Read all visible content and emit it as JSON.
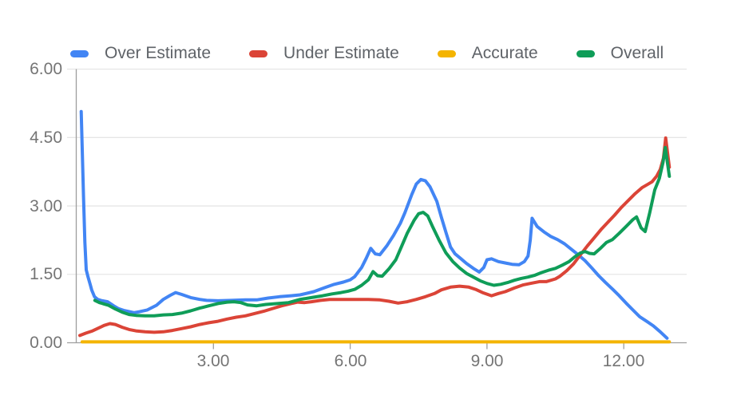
{
  "colors": {
    "background": "#ffffff",
    "grid": "#e6e6e6",
    "axis": "#9e9e9e",
    "tick_label": "#757575",
    "legend_label": "#5f6368"
  },
  "chart_data": {
    "type": "line",
    "title": "",
    "xlabel": "",
    "ylabel": "",
    "grid": true,
    "legend_position": "top",
    "x_range": [
      0,
      13.4
    ],
    "y_range": [
      0,
      6
    ],
    "x_ticks": [
      {
        "value": 3,
        "label": "3.00"
      },
      {
        "value": 6,
        "label": "6.00"
      },
      {
        "value": 9,
        "label": "9.00"
      },
      {
        "value": 12,
        "label": "12.00"
      }
    ],
    "y_ticks": [
      {
        "value": 6,
        "label": "6.00"
      },
      {
        "value": 4.5,
        "label": "4.50"
      },
      {
        "value": 3,
        "label": "3.00"
      },
      {
        "value": 1.5,
        "label": "1.50"
      },
      {
        "value": 0,
        "label": "0.00"
      }
    ],
    "series": [
      {
        "name": "Over Estimate",
        "color": "#4285F4",
        "points": [
          [
            0.1,
            5.07
          ],
          [
            0.12,
            4.3
          ],
          [
            0.15,
            3.2
          ],
          [
            0.18,
            2.2
          ],
          [
            0.21,
            1.6
          ],
          [
            0.25,
            1.44
          ],
          [
            0.3,
            1.27
          ],
          [
            0.33,
            1.16
          ],
          [
            0.39,
            1.01
          ],
          [
            0.46,
            0.95
          ],
          [
            0.56,
            0.92
          ],
          [
            0.68,
            0.9
          ],
          [
            0.81,
            0.81
          ],
          [
            0.91,
            0.75
          ],
          [
            1.03,
            0.71
          ],
          [
            1.16,
            0.68
          ],
          [
            1.26,
            0.66
          ],
          [
            1.38,
            0.68
          ],
          [
            1.55,
            0.72
          ],
          [
            1.75,
            0.82
          ],
          [
            1.9,
            0.95
          ],
          [
            2.05,
            1.04
          ],
          [
            2.17,
            1.1
          ],
          [
            2.3,
            1.06
          ],
          [
            2.5,
            0.99
          ],
          [
            2.7,
            0.95
          ],
          [
            2.85,
            0.93
          ],
          [
            3.1,
            0.92
          ],
          [
            3.4,
            0.93
          ],
          [
            3.7,
            0.94
          ],
          [
            3.95,
            0.94
          ],
          [
            4.2,
            0.98
          ],
          [
            4.45,
            1.01
          ],
          [
            4.7,
            1.03
          ],
          [
            4.9,
            1.05
          ],
          [
            5.2,
            1.12
          ],
          [
            5.45,
            1.21
          ],
          [
            5.65,
            1.28
          ],
          [
            5.85,
            1.33
          ],
          [
            6.0,
            1.38
          ],
          [
            6.1,
            1.45
          ],
          [
            6.25,
            1.65
          ],
          [
            6.35,
            1.85
          ],
          [
            6.45,
            2.07
          ],
          [
            6.55,
            1.95
          ],
          [
            6.65,
            1.93
          ],
          [
            6.8,
            2.12
          ],
          [
            6.95,
            2.35
          ],
          [
            7.1,
            2.62
          ],
          [
            7.2,
            2.85
          ],
          [
            7.35,
            3.25
          ],
          [
            7.45,
            3.48
          ],
          [
            7.55,
            3.58
          ],
          [
            7.65,
            3.55
          ],
          [
            7.75,
            3.42
          ],
          [
            7.9,
            3.1
          ],
          [
            8.0,
            2.75
          ],
          [
            8.1,
            2.42
          ],
          [
            8.2,
            2.1
          ],
          [
            8.3,
            1.95
          ],
          [
            8.42,
            1.85
          ],
          [
            8.55,
            1.74
          ],
          [
            8.7,
            1.63
          ],
          [
            8.83,
            1.55
          ],
          [
            8.93,
            1.65
          ],
          [
            9.0,
            1.82
          ],
          [
            9.1,
            1.84
          ],
          [
            9.25,
            1.78
          ],
          [
            9.4,
            1.75
          ],
          [
            9.55,
            1.72
          ],
          [
            9.7,
            1.71
          ],
          [
            9.82,
            1.78
          ],
          [
            9.9,
            1.9
          ],
          [
            9.95,
            2.25
          ],
          [
            9.99,
            2.73
          ],
          [
            10.1,
            2.55
          ],
          [
            10.25,
            2.43
          ],
          [
            10.4,
            2.33
          ],
          [
            10.55,
            2.26
          ],
          [
            10.7,
            2.17
          ],
          [
            10.85,
            2.05
          ],
          [
            11.0,
            1.93
          ],
          [
            11.15,
            1.8
          ],
          [
            11.3,
            1.64
          ],
          [
            11.45,
            1.47
          ],
          [
            11.6,
            1.32
          ],
          [
            11.75,
            1.18
          ],
          [
            11.9,
            1.03
          ],
          [
            12.05,
            0.87
          ],
          [
            12.2,
            0.72
          ],
          [
            12.35,
            0.57
          ],
          [
            12.5,
            0.47
          ],
          [
            12.65,
            0.37
          ],
          [
            12.8,
            0.24
          ],
          [
            12.95,
            0.1
          ]
        ]
      },
      {
        "name": "Under Estimate",
        "color": "#DB4437",
        "points": [
          [
            0.07,
            0.16
          ],
          [
            0.2,
            0.21
          ],
          [
            0.35,
            0.26
          ],
          [
            0.5,
            0.33
          ],
          [
            0.6,
            0.38
          ],
          [
            0.73,
            0.42
          ],
          [
            0.85,
            0.4
          ],
          [
            1.0,
            0.34
          ],
          [
            1.15,
            0.29
          ],
          [
            1.3,
            0.26
          ],
          [
            1.5,
            0.24
          ],
          [
            1.7,
            0.23
          ],
          [
            1.9,
            0.24
          ],
          [
            2.1,
            0.27
          ],
          [
            2.3,
            0.31
          ],
          [
            2.5,
            0.35
          ],
          [
            2.7,
            0.4
          ],
          [
            2.9,
            0.44
          ],
          [
            3.1,
            0.47
          ],
          [
            3.3,
            0.52
          ],
          [
            3.5,
            0.56
          ],
          [
            3.7,
            0.59
          ],
          [
            3.9,
            0.64
          ],
          [
            4.1,
            0.69
          ],
          [
            4.3,
            0.75
          ],
          [
            4.5,
            0.81
          ],
          [
            4.7,
            0.86
          ],
          [
            4.85,
            0.89
          ],
          [
            5.0,
            0.88
          ],
          [
            5.15,
            0.9
          ],
          [
            5.35,
            0.93
          ],
          [
            5.55,
            0.95
          ],
          [
            5.8,
            0.95
          ],
          [
            6.1,
            0.95
          ],
          [
            6.4,
            0.95
          ],
          [
            6.65,
            0.94
          ],
          [
            6.85,
            0.91
          ],
          [
            7.05,
            0.87
          ],
          [
            7.25,
            0.9
          ],
          [
            7.45,
            0.95
          ],
          [
            7.65,
            1.01
          ],
          [
            7.85,
            1.08
          ],
          [
            8.0,
            1.16
          ],
          [
            8.2,
            1.22
          ],
          [
            8.4,
            1.24
          ],
          [
            8.6,
            1.22
          ],
          [
            8.75,
            1.17
          ],
          [
            8.9,
            1.1
          ],
          [
            9.1,
            1.03
          ],
          [
            9.25,
            1.08
          ],
          [
            9.4,
            1.12
          ],
          [
            9.6,
            1.2
          ],
          [
            9.8,
            1.27
          ],
          [
            9.95,
            1.3
          ],
          [
            10.15,
            1.34
          ],
          [
            10.3,
            1.34
          ],
          [
            10.5,
            1.4
          ],
          [
            10.6,
            1.46
          ],
          [
            10.75,
            1.58
          ],
          [
            10.9,
            1.73
          ],
          [
            11.05,
            1.93
          ],
          [
            11.2,
            2.12
          ],
          [
            11.35,
            2.3
          ],
          [
            11.5,
            2.48
          ],
          [
            11.65,
            2.64
          ],
          [
            11.8,
            2.8
          ],
          [
            11.95,
            2.97
          ],
          [
            12.1,
            3.12
          ],
          [
            12.25,
            3.27
          ],
          [
            12.4,
            3.4
          ],
          [
            12.52,
            3.47
          ],
          [
            12.62,
            3.53
          ],
          [
            12.72,
            3.65
          ],
          [
            12.8,
            3.8
          ],
          [
            12.87,
            4.05
          ],
          [
            12.92,
            4.49
          ],
          [
            13.0,
            3.85
          ]
        ]
      },
      {
        "name": "Accurate",
        "color": "#F4B400",
        "points": [
          [
            0.12,
            0.02
          ],
          [
            13.0,
            0.02
          ]
        ]
      },
      {
        "name": "Overall",
        "color": "#0F9D58",
        "points": [
          [
            0.4,
            0.93
          ],
          [
            0.5,
            0.88
          ],
          [
            0.6,
            0.85
          ],
          [
            0.7,
            0.82
          ],
          [
            0.85,
            0.74
          ],
          [
            1.0,
            0.67
          ],
          [
            1.15,
            0.62
          ],
          [
            1.3,
            0.6
          ],
          [
            1.5,
            0.59
          ],
          [
            1.7,
            0.59
          ],
          [
            1.9,
            0.61
          ],
          [
            2.1,
            0.62
          ],
          [
            2.3,
            0.65
          ],
          [
            2.5,
            0.7
          ],
          [
            2.7,
            0.76
          ],
          [
            2.9,
            0.81
          ],
          [
            3.1,
            0.86
          ],
          [
            3.3,
            0.89
          ],
          [
            3.45,
            0.9
          ],
          [
            3.6,
            0.88
          ],
          [
            3.75,
            0.83
          ],
          [
            3.95,
            0.81
          ],
          [
            4.15,
            0.84
          ],
          [
            4.4,
            0.86
          ],
          [
            4.65,
            0.88
          ],
          [
            4.9,
            0.95
          ],
          [
            5.15,
            0.99
          ],
          [
            5.4,
            1.03
          ],
          [
            5.6,
            1.07
          ],
          [
            5.8,
            1.1
          ],
          [
            5.95,
            1.13
          ],
          [
            6.1,
            1.17
          ],
          [
            6.25,
            1.26
          ],
          [
            6.4,
            1.38
          ],
          [
            6.5,
            1.56
          ],
          [
            6.6,
            1.47
          ],
          [
            6.7,
            1.46
          ],
          [
            6.85,
            1.62
          ],
          [
            7.0,
            1.82
          ],
          [
            7.1,
            2.05
          ],
          [
            7.25,
            2.4
          ],
          [
            7.4,
            2.68
          ],
          [
            7.5,
            2.83
          ],
          [
            7.6,
            2.86
          ],
          [
            7.7,
            2.78
          ],
          [
            7.8,
            2.56
          ],
          [
            7.95,
            2.25
          ],
          [
            8.1,
            1.97
          ],
          [
            8.25,
            1.78
          ],
          [
            8.4,
            1.64
          ],
          [
            8.55,
            1.52
          ],
          [
            8.7,
            1.44
          ],
          [
            8.85,
            1.36
          ],
          [
            9.0,
            1.3
          ],
          [
            9.15,
            1.26
          ],
          [
            9.3,
            1.28
          ],
          [
            9.45,
            1.32
          ],
          [
            9.6,
            1.37
          ],
          [
            9.75,
            1.41
          ],
          [
            9.9,
            1.44
          ],
          [
            10.05,
            1.48
          ],
          [
            10.2,
            1.54
          ],
          [
            10.35,
            1.59
          ],
          [
            10.5,
            1.63
          ],
          [
            10.65,
            1.7
          ],
          [
            10.8,
            1.78
          ],
          [
            10.92,
            1.88
          ],
          [
            11.05,
            1.97
          ],
          [
            11.15,
            2.0
          ],
          [
            11.25,
            1.96
          ],
          [
            11.35,
            1.95
          ],
          [
            11.5,
            2.08
          ],
          [
            11.62,
            2.2
          ],
          [
            11.75,
            2.26
          ],
          [
            11.9,
            2.4
          ],
          [
            12.05,
            2.55
          ],
          [
            12.2,
            2.7
          ],
          [
            12.28,
            2.76
          ],
          [
            12.38,
            2.52
          ],
          [
            12.47,
            2.44
          ],
          [
            12.57,
            2.85
          ],
          [
            12.68,
            3.35
          ],
          [
            12.78,
            3.6
          ],
          [
            12.86,
            3.95
          ],
          [
            12.91,
            4.28
          ],
          [
            13.0,
            3.65
          ]
        ]
      }
    ]
  }
}
